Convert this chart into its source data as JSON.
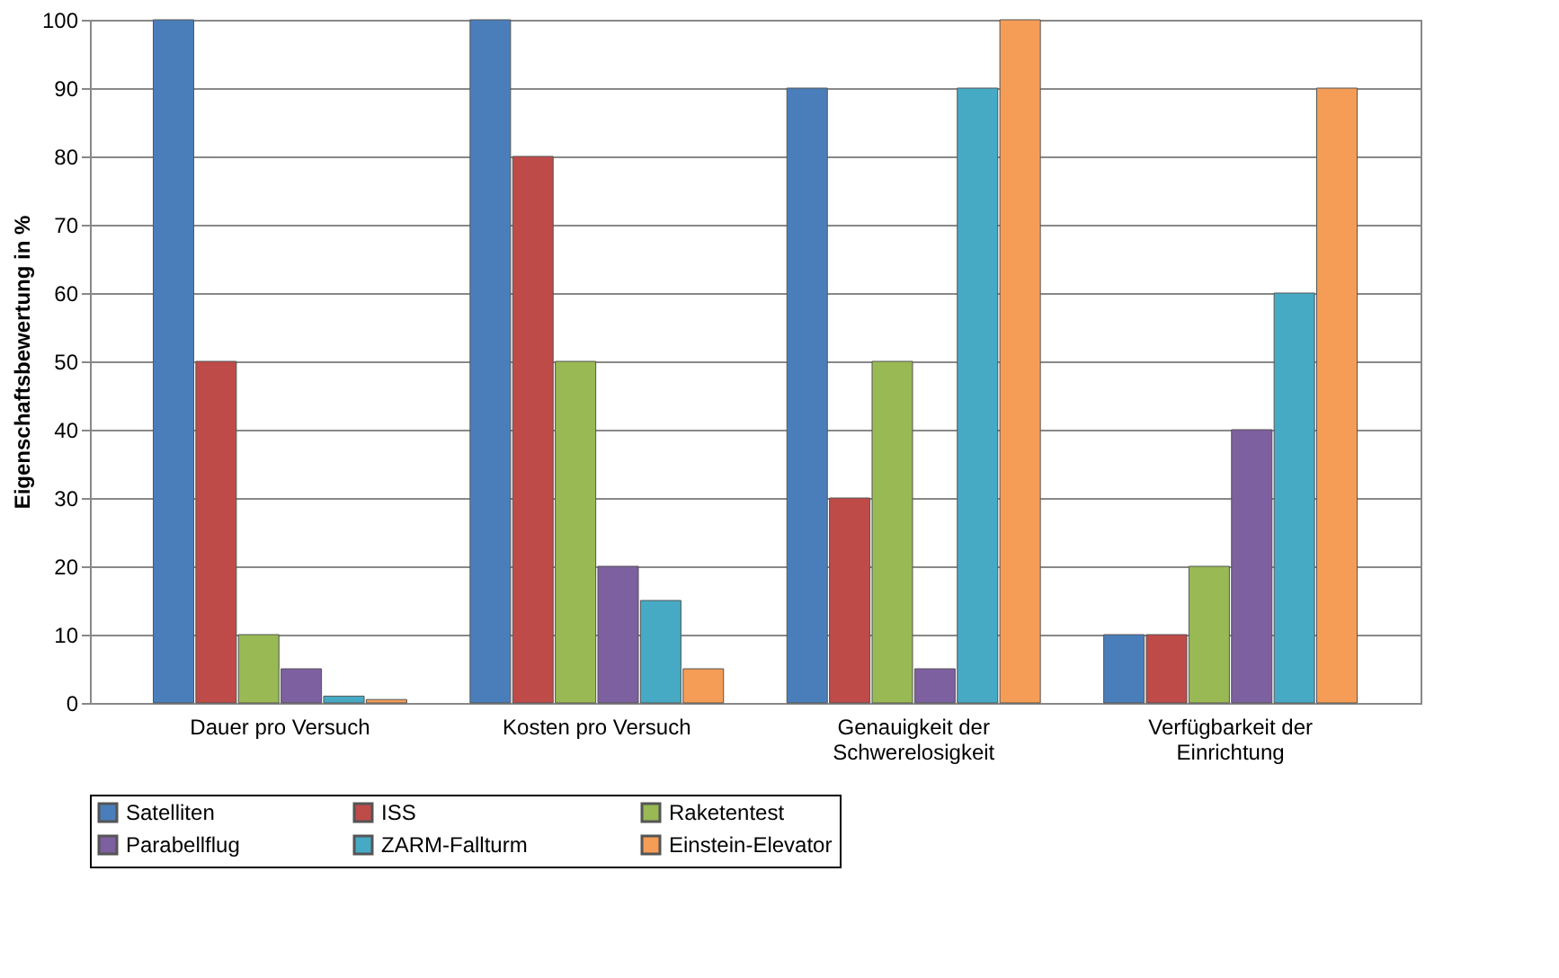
{
  "chart_data": {
    "type": "bar",
    "ylabel": "Eigenschaftsbewertung in %",
    "categories": [
      "Dauer pro Versuch",
      "Kosten pro Versuch",
      "Genauigkeit der Schwerelosigkeit",
      "Verfügbarkeit der Einrichtung"
    ],
    "series": [
      {
        "name": "Satelliten",
        "color": "#4a7ebb",
        "values": [
          100,
          100,
          90,
          10
        ]
      },
      {
        "name": "ISS",
        "color": "#be4b48",
        "values": [
          50,
          80,
          30,
          10
        ]
      },
      {
        "name": "Raketentest",
        "color": "#98b954",
        "values": [
          10,
          50,
          50,
          20
        ]
      },
      {
        "name": "Parabellflug",
        "color": "#7d60a0",
        "values": [
          5,
          20,
          5,
          40
        ]
      },
      {
        "name": "ZARM-Fallturm",
        "color": "#46aac5",
        "values": [
          1,
          15,
          90,
          60
        ]
      },
      {
        "name": "Einstein-Elevator",
        "color": "#f59d56",
        "values": [
          0.5,
          5,
          100,
          90
        ]
      }
    ],
    "ylim": [
      0,
      100
    ],
    "yticks": [
      0,
      10,
      20,
      30,
      40,
      50,
      60,
      70,
      80,
      90,
      100
    ],
    "grid": "y",
    "legend": "bottom"
  }
}
